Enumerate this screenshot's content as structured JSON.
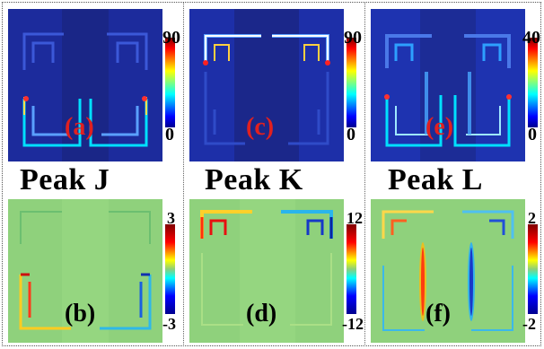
{
  "panels": {
    "a": {
      "label": "(a)",
      "cbar_max": "90",
      "cbar_min": "0"
    },
    "c": {
      "label": "(c)",
      "cbar_max": "90",
      "cbar_min": "0"
    },
    "e": {
      "label": "(e)",
      "cbar_max": "40",
      "cbar_min": "0"
    },
    "b": {
      "label": "(b)",
      "cbar_max": "3",
      "cbar_min": "-3"
    },
    "d": {
      "label": "(d)",
      "cbar_max": "12",
      "cbar_min": "-12"
    },
    "f": {
      "label": "(f)",
      "cbar_max": "2",
      "cbar_min": "-2"
    }
  },
  "peaks": {
    "j": "Peak J",
    "k": "Peak K",
    "l": "Peak L"
  },
  "colors": {
    "field_bg": "#1a2a9a",
    "charge_bg": "#8ccf7a",
    "label_red": "#e02020",
    "label_black": "#000000"
  }
}
